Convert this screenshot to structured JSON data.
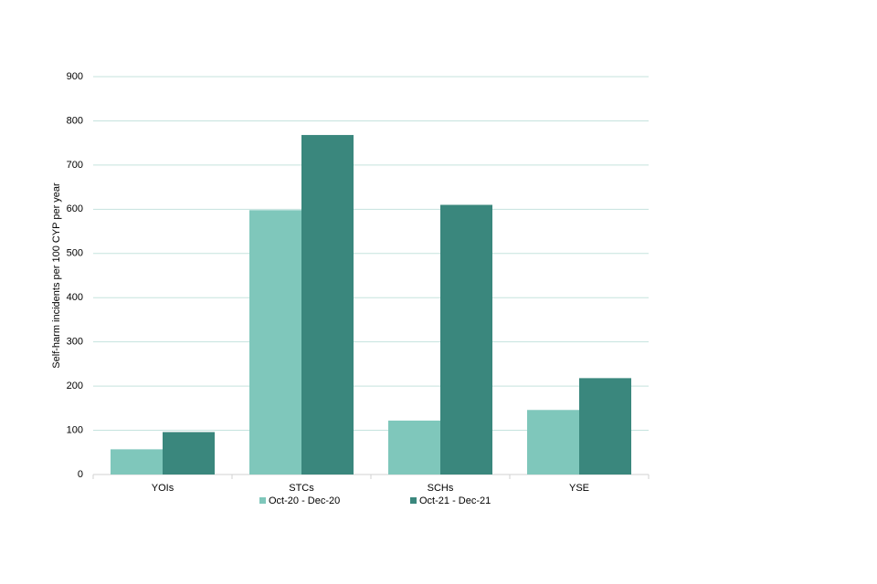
{
  "chart_data": {
    "type": "bar",
    "y_label": "Self-harm incidents per 100 CYP per year",
    "categories": [
      "YOIs",
      "STCs",
      "SCHs",
      "YSE"
    ],
    "series": [
      {
        "name": "Oct-20 - Dec-20",
        "color": "#7fc7bb",
        "values": [
          57,
          598,
          122,
          146
        ]
      },
      {
        "name": "Oct-21 - Dec-21",
        "color": "#3a877d",
        "values": [
          96,
          768,
          610,
          218
        ]
      }
    ],
    "ylim": [
      0,
      900
    ],
    "yticks": [
      0,
      100,
      200,
      300,
      400,
      500,
      600,
      700,
      800,
      900
    ],
    "grid": true
  }
}
